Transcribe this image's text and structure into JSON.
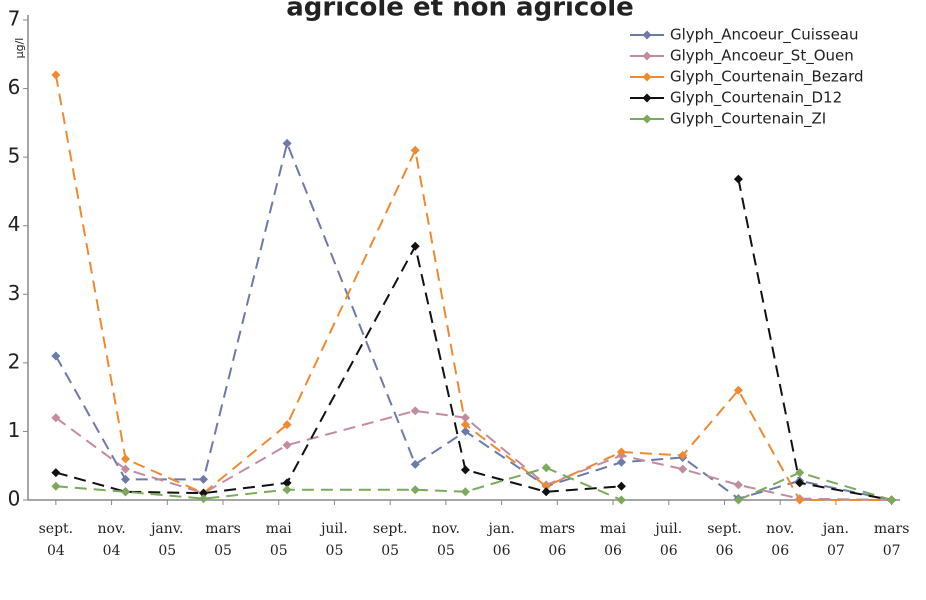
{
  "chart_data": {
    "type": "line",
    "title": "agricole et non agricole",
    "y_label": "µg/l",
    "x": [
      0,
      2.5,
      5.3,
      8.3,
      12.9,
      14.7,
      17.6,
      20.3,
      22.5,
      24.5,
      26.7,
      30
    ],
    "series": [
      {
        "name": "Glyph_Ancoeur_Cuisseau",
        "color": "#6b7aa8",
        "values": [
          2.1,
          0.3,
          0.3,
          5.2,
          0.52,
          1.0,
          0.2,
          0.55,
          0.62,
          0.02,
          0.28,
          0
        ]
      },
      {
        "name": "Glyph_Ancoeur_St_Ouen",
        "color": "#c48aa0",
        "values": [
          1.2,
          0.45,
          0.1,
          0.8,
          1.3,
          1.2,
          0.22,
          0.65,
          0.45,
          0.22,
          0.02,
          0
        ]
      },
      {
        "name": "Glyph_Courtenain_Bezard",
        "color": "#f08a30",
        "values": [
          6.2,
          0.6,
          0.1,
          1.1,
          5.1,
          1.1,
          0.2,
          0.7,
          0.65,
          1.6,
          0.0,
          0
        ]
      },
      {
        "name": "Glyph_Courtenain_D12",
        "color": "#111111",
        "values": [
          0.4,
          0.12,
          0.1,
          0.25,
          3.7,
          0.44,
          0.12,
          0.2,
          null,
          4.68,
          0.25,
          0
        ]
      },
      {
        "name": "Glyph_Courtenain_ZI",
        "color": "#7aaa5a",
        "values": [
          0.2,
          0.12,
          0.02,
          0.15,
          0.15,
          0.12,
          0.47,
          0.0,
          null,
          0.0,
          0.4,
          0
        ]
      }
    ],
    "xlim": [
      -1,
      30.3
    ],
    "xticks": [
      {
        "value": 0,
        "label": "sept. 04"
      },
      {
        "value": 2,
        "label": "nov. 04"
      },
      {
        "value": 4,
        "label": "janv. 05"
      },
      {
        "value": 6,
        "label": "mars 05"
      },
      {
        "value": 8,
        "label": "mai 05"
      },
      {
        "value": 10,
        "label": "juil. 05"
      },
      {
        "value": 12,
        "label": "sept. 05"
      },
      {
        "value": 14,
        "label": "nov. 05"
      },
      {
        "value": 16,
        "label": "jan. 06"
      },
      {
        "value": 18,
        "label": "mars 06"
      },
      {
        "value": 20,
        "label": "mai 06"
      },
      {
        "value": 22,
        "label": "juil. 06"
      },
      {
        "value": 24,
        "label": "sept. 06"
      },
      {
        "value": 26,
        "label": "nov. 06"
      },
      {
        "value": 28,
        "label": "jan. 07"
      },
      {
        "value": 30,
        "label": "mars 07"
      }
    ],
    "ylim": [
      0,
      7
    ],
    "yticks": [
      0,
      1,
      2,
      3,
      4,
      5,
      6,
      7
    ],
    "legend": "top-right",
    "dashed": true
  }
}
